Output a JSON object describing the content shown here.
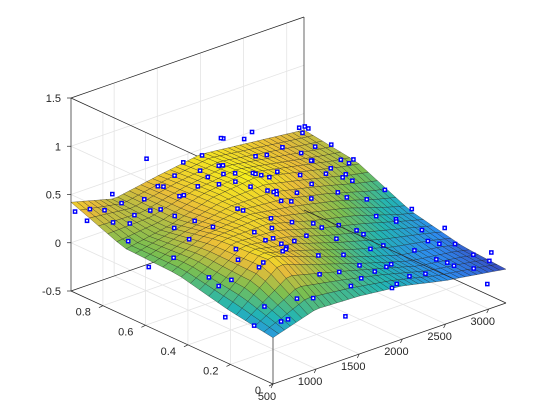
{
  "chart_data": {
    "type": "surface",
    "title": "",
    "xlabel": "",
    "ylabel": "",
    "zlabel": "",
    "xlim": [
      500,
      3200
    ],
    "ylim": [
      0,
      0.95
    ],
    "zlim": [
      -0.5,
      1.5
    ],
    "x_ticks": [
      "500",
      "1000",
      "1500",
      "2000",
      "2500",
      "3000"
    ],
    "y_ticks": [
      "0",
      "0.2",
      "0.4",
      "0.6",
      "0.8"
    ],
    "z_ticks": [
      "-0.5",
      "0",
      "0.5",
      "1",
      "1.5"
    ],
    "grid": true,
    "box": true,
    "colormap": [
      "#3e26a8",
      "#2d8cf0",
      "#23b5b3",
      "#7bbf50",
      "#eabc39",
      "#f9fb15"
    ],
    "marker_color": "#0000ff",
    "marker_style": "filled-circle",
    "surface_samples": [
      {
        "y": 0.0,
        "x": [
          500,
          1000,
          1500,
          2000,
          2500,
          3000,
          3200
        ],
        "z": [
          -0.02,
          0.12,
          0.1,
          0.05,
          -0.05,
          -0.12,
          -0.15
        ]
      },
      {
        "y": 0.2,
        "x": [
          500,
          1000,
          1500,
          2000,
          2500,
          3000,
          3200
        ],
        "z": [
          0.05,
          0.45,
          0.28,
          0.12,
          -0.02,
          -0.08,
          -0.12
        ]
      },
      {
        "y": 0.45,
        "x": [
          500,
          1000,
          1500,
          2000,
          2500,
          3000,
          3200
        ],
        "z": [
          0.18,
          0.4,
          0.42,
          0.3,
          0.2,
          0.05,
          0.0
        ]
      },
      {
        "y": 0.7,
        "x": [
          500,
          1000,
          1500,
          2000,
          2500,
          3000,
          3200
        ],
        "z": [
          0.2,
          0.28,
          0.42,
          0.48,
          0.38,
          0.28,
          0.25
        ]
      },
      {
        "y": 0.95,
        "x": [
          500,
          1000,
          1500,
          2000,
          2500,
          3000,
          3200
        ],
        "z": [
          0.42,
          0.3,
          0.38,
          0.45,
          0.4,
          0.35,
          0.33
        ]
      }
    ]
  }
}
